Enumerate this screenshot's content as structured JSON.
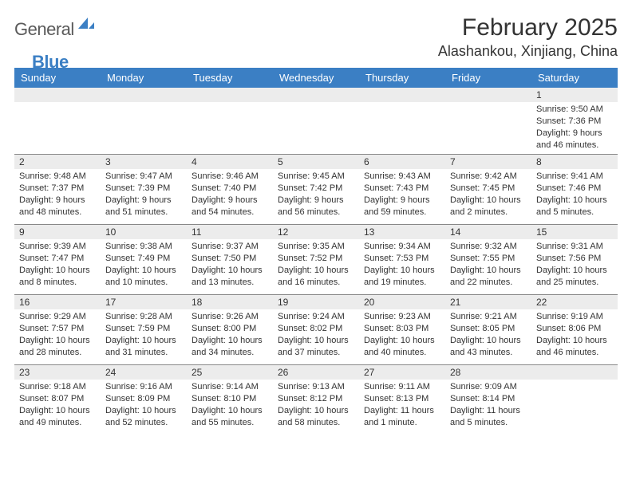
{
  "logo": {
    "part1": "General",
    "part2": "Blue",
    "shape_color": "#3b7fc4"
  },
  "title": "February 2025",
  "location": "Alashankou, Xinjiang, China",
  "colors": {
    "header_bg": "#3b7fc4",
    "header_fg": "#ffffff",
    "daynum_bg": "#ececec",
    "border": "#888888"
  },
  "weekdays": [
    "Sunday",
    "Monday",
    "Tuesday",
    "Wednesday",
    "Thursday",
    "Friday",
    "Saturday"
  ],
  "weeks": [
    [
      {
        "day": "",
        "sunrise": "",
        "sunset": "",
        "daylight": ""
      },
      {
        "day": "",
        "sunrise": "",
        "sunset": "",
        "daylight": ""
      },
      {
        "day": "",
        "sunrise": "",
        "sunset": "",
        "daylight": ""
      },
      {
        "day": "",
        "sunrise": "",
        "sunset": "",
        "daylight": ""
      },
      {
        "day": "",
        "sunrise": "",
        "sunset": "",
        "daylight": ""
      },
      {
        "day": "",
        "sunrise": "",
        "sunset": "",
        "daylight": ""
      },
      {
        "day": "1",
        "sunrise": "Sunrise: 9:50 AM",
        "sunset": "Sunset: 7:36 PM",
        "daylight": "Daylight: 9 hours and 46 minutes."
      }
    ],
    [
      {
        "day": "2",
        "sunrise": "Sunrise: 9:48 AM",
        "sunset": "Sunset: 7:37 PM",
        "daylight": "Daylight: 9 hours and 48 minutes."
      },
      {
        "day": "3",
        "sunrise": "Sunrise: 9:47 AM",
        "sunset": "Sunset: 7:39 PM",
        "daylight": "Daylight: 9 hours and 51 minutes."
      },
      {
        "day": "4",
        "sunrise": "Sunrise: 9:46 AM",
        "sunset": "Sunset: 7:40 PM",
        "daylight": "Daylight: 9 hours and 54 minutes."
      },
      {
        "day": "5",
        "sunrise": "Sunrise: 9:45 AM",
        "sunset": "Sunset: 7:42 PM",
        "daylight": "Daylight: 9 hours and 56 minutes."
      },
      {
        "day": "6",
        "sunrise": "Sunrise: 9:43 AM",
        "sunset": "Sunset: 7:43 PM",
        "daylight": "Daylight: 9 hours and 59 minutes."
      },
      {
        "day": "7",
        "sunrise": "Sunrise: 9:42 AM",
        "sunset": "Sunset: 7:45 PM",
        "daylight": "Daylight: 10 hours and 2 minutes."
      },
      {
        "day": "8",
        "sunrise": "Sunrise: 9:41 AM",
        "sunset": "Sunset: 7:46 PM",
        "daylight": "Daylight: 10 hours and 5 minutes."
      }
    ],
    [
      {
        "day": "9",
        "sunrise": "Sunrise: 9:39 AM",
        "sunset": "Sunset: 7:47 PM",
        "daylight": "Daylight: 10 hours and 8 minutes."
      },
      {
        "day": "10",
        "sunrise": "Sunrise: 9:38 AM",
        "sunset": "Sunset: 7:49 PM",
        "daylight": "Daylight: 10 hours and 10 minutes."
      },
      {
        "day": "11",
        "sunrise": "Sunrise: 9:37 AM",
        "sunset": "Sunset: 7:50 PM",
        "daylight": "Daylight: 10 hours and 13 minutes."
      },
      {
        "day": "12",
        "sunrise": "Sunrise: 9:35 AM",
        "sunset": "Sunset: 7:52 PM",
        "daylight": "Daylight: 10 hours and 16 minutes."
      },
      {
        "day": "13",
        "sunrise": "Sunrise: 9:34 AM",
        "sunset": "Sunset: 7:53 PM",
        "daylight": "Daylight: 10 hours and 19 minutes."
      },
      {
        "day": "14",
        "sunrise": "Sunrise: 9:32 AM",
        "sunset": "Sunset: 7:55 PM",
        "daylight": "Daylight: 10 hours and 22 minutes."
      },
      {
        "day": "15",
        "sunrise": "Sunrise: 9:31 AM",
        "sunset": "Sunset: 7:56 PM",
        "daylight": "Daylight: 10 hours and 25 minutes."
      }
    ],
    [
      {
        "day": "16",
        "sunrise": "Sunrise: 9:29 AM",
        "sunset": "Sunset: 7:57 PM",
        "daylight": "Daylight: 10 hours and 28 minutes."
      },
      {
        "day": "17",
        "sunrise": "Sunrise: 9:28 AM",
        "sunset": "Sunset: 7:59 PM",
        "daylight": "Daylight: 10 hours and 31 minutes."
      },
      {
        "day": "18",
        "sunrise": "Sunrise: 9:26 AM",
        "sunset": "Sunset: 8:00 PM",
        "daylight": "Daylight: 10 hours and 34 minutes."
      },
      {
        "day": "19",
        "sunrise": "Sunrise: 9:24 AM",
        "sunset": "Sunset: 8:02 PM",
        "daylight": "Daylight: 10 hours and 37 minutes."
      },
      {
        "day": "20",
        "sunrise": "Sunrise: 9:23 AM",
        "sunset": "Sunset: 8:03 PM",
        "daylight": "Daylight: 10 hours and 40 minutes."
      },
      {
        "day": "21",
        "sunrise": "Sunrise: 9:21 AM",
        "sunset": "Sunset: 8:05 PM",
        "daylight": "Daylight: 10 hours and 43 minutes."
      },
      {
        "day": "22",
        "sunrise": "Sunrise: 9:19 AM",
        "sunset": "Sunset: 8:06 PM",
        "daylight": "Daylight: 10 hours and 46 minutes."
      }
    ],
    [
      {
        "day": "23",
        "sunrise": "Sunrise: 9:18 AM",
        "sunset": "Sunset: 8:07 PM",
        "daylight": "Daylight: 10 hours and 49 minutes."
      },
      {
        "day": "24",
        "sunrise": "Sunrise: 9:16 AM",
        "sunset": "Sunset: 8:09 PM",
        "daylight": "Daylight: 10 hours and 52 minutes."
      },
      {
        "day": "25",
        "sunrise": "Sunrise: 9:14 AM",
        "sunset": "Sunset: 8:10 PM",
        "daylight": "Daylight: 10 hours and 55 minutes."
      },
      {
        "day": "26",
        "sunrise": "Sunrise: 9:13 AM",
        "sunset": "Sunset: 8:12 PM",
        "daylight": "Daylight: 10 hours and 58 minutes."
      },
      {
        "day": "27",
        "sunrise": "Sunrise: 9:11 AM",
        "sunset": "Sunset: 8:13 PM",
        "daylight": "Daylight: 11 hours and 1 minute."
      },
      {
        "day": "28",
        "sunrise": "Sunrise: 9:09 AM",
        "sunset": "Sunset: 8:14 PM",
        "daylight": "Daylight: 11 hours and 5 minutes."
      },
      {
        "day": "",
        "sunrise": "",
        "sunset": "",
        "daylight": ""
      }
    ]
  ]
}
